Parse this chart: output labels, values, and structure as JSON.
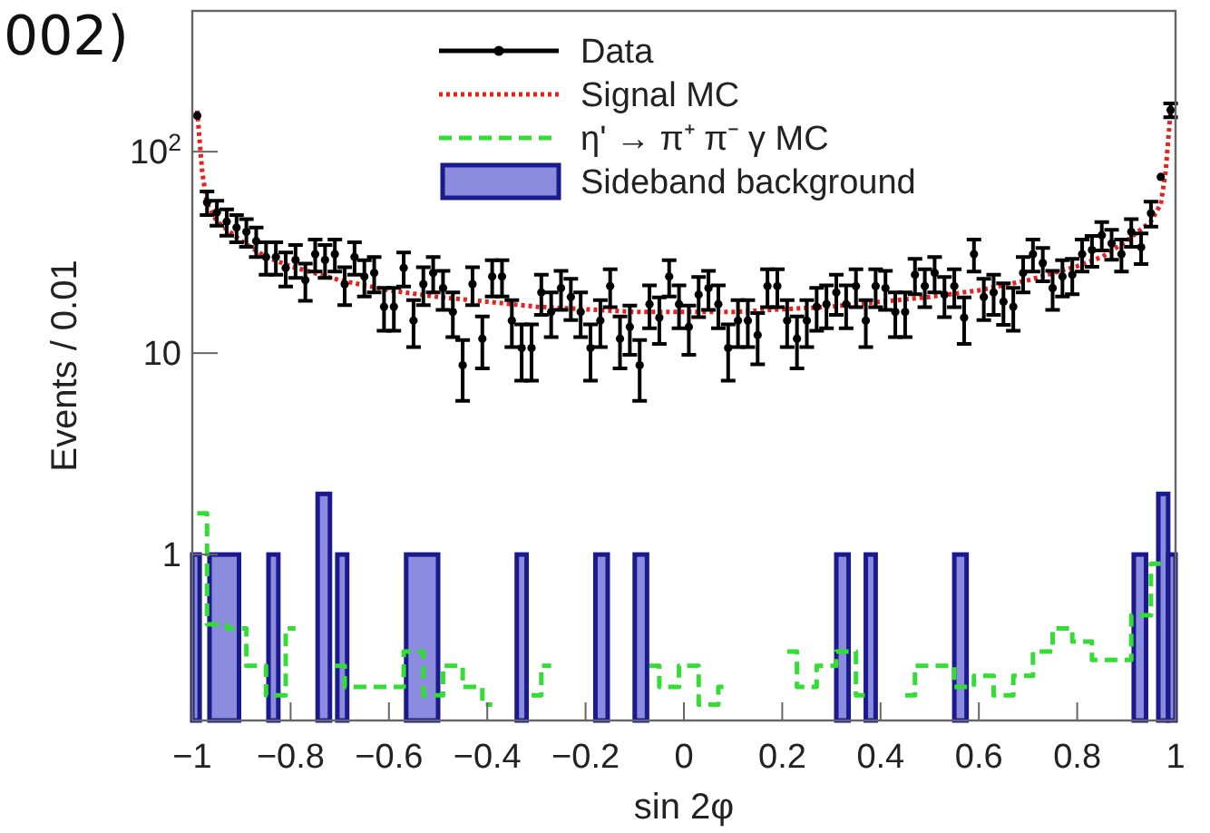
{
  "chart_data": {
    "type": "scatter",
    "xlabel": "sin 2φ",
    "ylabel": "Events / 0.01",
    "annotations": [
      "002)"
    ],
    "xlim": [
      -1,
      1
    ],
    "xticks": [
      {
        "value": -1,
        "label": "−1"
      },
      {
        "value": -0.8,
        "label": "−0.8"
      },
      {
        "value": -0.6,
        "label": "−0.6"
      },
      {
        "value": -0.4,
        "label": "−0.4"
      },
      {
        "value": -0.2,
        "label": "−0.2"
      },
      0,
      0.2,
      0.4,
      0.6,
      0.8,
      1
    ],
    "ylim": [
      0.15,
      500
    ],
    "yticks": [
      1,
      10,
      {
        "value": 100,
        "label": "10$^{2}$"
      }
    ],
    "log": "y",
    "grid": false,
    "legend": "top",
    "series": [
      {
        "name": "Sideband background",
        "type": "histogram",
        "color": "#5a5ad2",
        "bins": [
          -1,
          -0.985,
          -0.965,
          -0.905,
          -0.845,
          -0.825,
          -0.745,
          -0.72,
          -0.705,
          -0.685,
          -0.565,
          -0.5,
          -0.34,
          -0.32,
          -0.18,
          -0.155,
          -0.1,
          -0.075,
          0.31,
          0.335,
          0.37,
          0.39,
          0.55,
          0.575,
          0.915,
          0.94,
          0.965,
          0.985,
          1
        ],
        "values": [
          1,
          null,
          1,
          null,
          1,
          null,
          2,
          null,
          1,
          null,
          1,
          null,
          1,
          null,
          1,
          null,
          1,
          null,
          1,
          null,
          1,
          null,
          1,
          null,
          1,
          null,
          2,
          1
        ]
      },
      {
        "name": "η' → π⁺ π⁻ γ MC",
        "type": "step",
        "color": "#33dd33",
        "line_style": "dashed",
        "x": [
          -0.99,
          -0.95,
          -0.91,
          -0.87,
          -0.83,
          -0.79,
          -0.75,
          -0.71,
          -0.67,
          -0.63,
          -0.59,
          -0.55,
          -0.51,
          -0.47,
          -0.43,
          -0.39,
          -0.35,
          -0.31,
          -0.27,
          -0.23,
          -0.19,
          -0.15,
          -0.11,
          -0.07,
          -0.03,
          0.01,
          0.05,
          0.09,
          0.13,
          0.17,
          0.21,
          0.25,
          0.29,
          0.33,
          0.37,
          0.41,
          0.45,
          0.49,
          0.53,
          0.57,
          0.61,
          0.65,
          0.69,
          0.73,
          0.77,
          0.81,
          0.85,
          0.89,
          0.93,
          0.97
        ],
        "values": [
          1.6,
          0.45,
          0.43,
          0.28,
          0.2,
          0.43,
          null,
          0.28,
          0.22,
          0.22,
          0.22,
          0.33,
          0.2,
          0.28,
          0.22,
          0.18,
          null,
          0.2,
          0.28,
          null,
          null,
          null,
          null,
          0.28,
          0.22,
          0.28,
          0.18,
          0.22,
          null,
          null,
          0.33,
          0.22,
          0.28,
          0.33,
          0.2,
          null,
          0.2,
          0.28,
          0.28,
          0.22,
          0.25,
          0.2,
          0.25,
          0.33,
          0.43,
          0.37,
          0.3,
          0.3,
          0.5,
          0.9
        ]
      },
      {
        "name": "Signal MC",
        "type": "line",
        "color": "#e8211f",
        "line_style": "dotted",
        "x": [
          -0.99,
          -0.98,
          -0.97,
          -0.95,
          -0.9,
          -0.85,
          -0.8,
          -0.7,
          -0.6,
          -0.5,
          -0.4,
          -0.3,
          -0.2,
          -0.1,
          0,
          0.1,
          0.2,
          0.3,
          0.4,
          0.5,
          0.6,
          0.7,
          0.8,
          0.85,
          0.9,
          0.95,
          0.97,
          0.98,
          0.99
        ],
        "values": [
          160,
          80,
          55,
          45,
          36,
          30,
          27,
          23,
          20.5,
          19,
          18,
          17,
          16.5,
          16,
          16,
          16,
          16.5,
          17,
          18,
          19,
          20.5,
          23,
          27,
          30,
          36,
          45,
          55,
          80,
          160
        ]
      },
      {
        "name": "Data",
        "color": "#000000",
        "marker": "circle",
        "x": [
          -0.99,
          -0.97,
          -0.95,
          -0.93,
          -0.91,
          -0.89,
          -0.87,
          -0.85,
          -0.83,
          -0.81,
          -0.79,
          -0.77,
          -0.75,
          -0.73,
          -0.71,
          -0.69,
          -0.67,
          -0.65,
          -0.63,
          -0.61,
          -0.59,
          -0.57,
          -0.55,
          -0.53,
          -0.51,
          -0.49,
          -0.47,
          -0.45,
          -0.43,
          -0.41,
          -0.39,
          -0.37,
          -0.35,
          -0.33,
          -0.31,
          -0.29,
          -0.27,
          -0.25,
          -0.23,
          -0.21,
          -0.19,
          -0.17,
          -0.15,
          -0.13,
          -0.11,
          -0.09,
          -0.07,
          -0.05,
          -0.03,
          -0.01,
          0.01,
          0.03,
          0.05,
          0.07,
          0.09,
          0.11,
          0.13,
          0.15,
          0.17,
          0.19,
          0.21,
          0.23,
          0.25,
          0.27,
          0.29,
          0.31,
          0.33,
          0.35,
          0.37,
          0.39,
          0.41,
          0.43,
          0.45,
          0.47,
          0.49,
          0.51,
          0.53,
          0.55,
          0.57,
          0.59,
          0.61,
          0.63,
          0.65,
          0.67,
          0.69,
          0.71,
          0.73,
          0.75,
          0.77,
          0.79,
          0.81,
          0.83,
          0.85,
          0.87,
          0.89,
          0.91,
          0.93,
          0.95,
          0.97,
          0.99
        ],
        "values": [
          151,
          56,
          50,
          45,
          42,
          40,
          36,
          30,
          30,
          26.5,
          29,
          23,
          31,
          29,
          31,
          22,
          30,
          24,
          25,
          17,
          17,
          26.5,
          14.5,
          22,
          25,
          21,
          16,
          8.7,
          22,
          11.8,
          24,
          24,
          14.5,
          10.6,
          10.6,
          20,
          16,
          21,
          19,
          16,
          10.6,
          14.5,
          21.5,
          11.8,
          13.5,
          8.7,
          17.5,
          15,
          24,
          17.5,
          13.5,
          19.5,
          21,
          17.5,
          10.6,
          14.5,
          14.5,
          12.3,
          21.5,
          21.5,
          14.5,
          11.8,
          14.5,
          17,
          17.5,
          20,
          17.5,
          21.5,
          14.5,
          21.5,
          21,
          16,
          16,
          24.5,
          21.5,
          25,
          19.5,
          21.5,
          15,
          31,
          19,
          20,
          18,
          17,
          25,
          31,
          28,
          21,
          24,
          24.5,
          31,
          32.5,
          38.5,
          35,
          31,
          40,
          33.5,
          49.5,
          75,
          161
        ],
        "errors": [
          null,
          7.5,
          7.1,
          6.7,
          6.5,
          6.3,
          6,
          5.5,
          5.5,
          5.1,
          5.4,
          4.8,
          5.6,
          5.4,
          5.6,
          4.7,
          5.5,
          4.9,
          5,
          4.1,
          4.1,
          5.1,
          3.8,
          4.7,
          5,
          4.6,
          4,
          2.9,
          4.7,
          3.4,
          4.9,
          4.9,
          3.8,
          3.3,
          3.3,
          4.5,
          4,
          4.6,
          4.4,
          4,
          3.3,
          3.8,
          4.6,
          3.4,
          3.7,
          2.9,
          4.2,
          3.9,
          4.9,
          4.2,
          3.7,
          4.4,
          4.6,
          4.2,
          3.3,
          3.8,
          3.8,
          3.5,
          4.6,
          4.6,
          3.8,
          3.4,
          3.8,
          4.1,
          4.2,
          4.5,
          4.2,
          4.6,
          3.8,
          4.6,
          4.6,
          4,
          4,
          4.9,
          4.6,
          5,
          4.4,
          4.6,
          3.9,
          5.6,
          4.4,
          4.5,
          4.2,
          4.1,
          5,
          5.6,
          5.3,
          4.6,
          4.9,
          4.9,
          5.6,
          5.7,
          6.2,
          5.9,
          5.6,
          6.3,
          5.8,
          7,
          null,
          12.7
        ]
      }
    ]
  }
}
